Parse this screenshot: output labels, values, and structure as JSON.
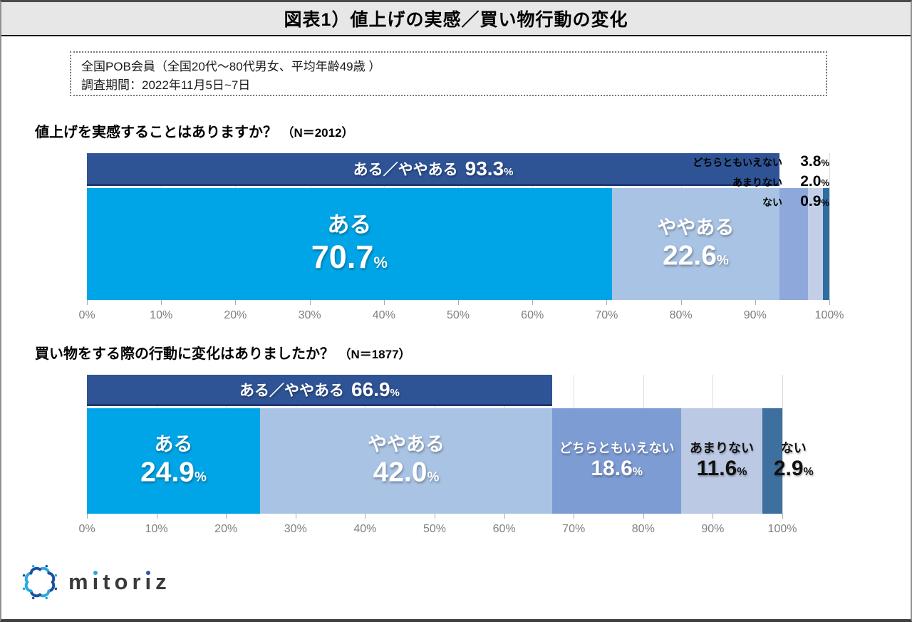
{
  "page": {
    "title": "図表1）値上げの実感／買い物行動の変化",
    "note_line1": "全国POB会員（全国20代～80代男女、平均年齢49歳 ）",
    "note_line2": "調査期間：2022年11月5日~7日",
    "brand": "mitoriz",
    "logo_icon": "mitoriz-starburst-icon",
    "colors": {
      "overlay_navy": "#2F5496",
      "aru_cyan": "#00A5E7",
      "header_gray": "#E7E7E7"
    }
  },
  "chart_data": [
    {
      "type": "bar",
      "variant": "horizontal-stacked-100",
      "question": "値上げを実感することはありますか？",
      "n_label": "（N＝2012）",
      "overlay": {
        "label": "ある／ややある",
        "value": 93.3
      },
      "segments": [
        {
          "label": "ある",
          "value": 70.7,
          "color": "#00A5E7",
          "label_style": "xl"
        },
        {
          "label": "ややある",
          "value": 22.6,
          "color": "#A9C3E4",
          "label_style": "l"
        },
        {
          "label": "どちらともいえない",
          "value": 3.8,
          "color": "#8FA8DB",
          "label_style": "legend"
        },
        {
          "label": "あまりない",
          "value": 2.0,
          "color": "#C3CFE9",
          "label_style": "legend"
        },
        {
          "label": "ない",
          "value": 0.9,
          "color": "#2F6DA0",
          "label_style": "legend"
        }
      ],
      "x_ticks": [
        "0%",
        "10%",
        "20%",
        "30%",
        "40%",
        "50%",
        "60%",
        "70%",
        "80%",
        "90%",
        "100%"
      ],
      "xlim": [
        0,
        100
      ],
      "grid": true,
      "legend_position": "top-right"
    },
    {
      "type": "bar",
      "variant": "horizontal-stacked-100",
      "question": "買い物をする際の行動に変化はありましたか？",
      "n_label": "（N＝1877）",
      "overlay": {
        "label": "ある／ややある",
        "value": 66.9
      },
      "segments": [
        {
          "label": "ある",
          "value": 24.9,
          "color": "#00A5E7",
          "label_style": "l"
        },
        {
          "label": "ややある",
          "value": 42.0,
          "color": "#A9C3E4",
          "label_style": "l"
        },
        {
          "label": "どちらともいえない",
          "value": 18.6,
          "color": "#7E9CD4",
          "label_style": "m-light"
        },
        {
          "label": "あまりない",
          "value": 11.6,
          "color": "#BBC9E5",
          "label_style": "m-dark"
        },
        {
          "label": "ない",
          "value": 2.9,
          "color": "#3D6F9F",
          "label_style": "m-outside"
        }
      ],
      "x_ticks": [
        "0%",
        "10%",
        "20%",
        "30%",
        "40%",
        "50%",
        "60%",
        "70%",
        "80%",
        "90%",
        "100%"
      ],
      "xlim": [
        0,
        100
      ],
      "grid": true,
      "legend_position": "none"
    }
  ]
}
